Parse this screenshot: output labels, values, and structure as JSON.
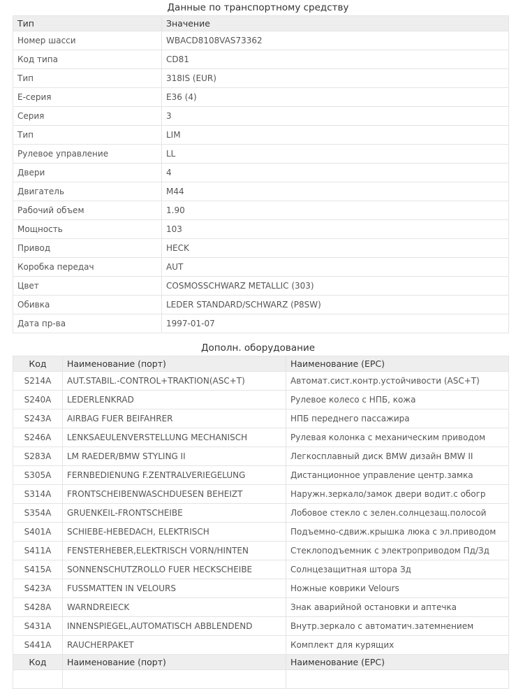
{
  "vehicle": {
    "title": "Данные по транспортному средству",
    "headers": [
      "Тип",
      "Значение"
    ],
    "rows": [
      [
        "Номер шасси",
        "WBACD8108VAS73362"
      ],
      [
        "Код типа",
        "CD81"
      ],
      [
        "Тип",
        "318IS (EUR)"
      ],
      [
        "E-серия",
        "E36 (4)"
      ],
      [
        "Серия",
        "3"
      ],
      [
        "Тип",
        "LIM"
      ],
      [
        "Рулевое управление",
        "LL"
      ],
      [
        "Двери",
        "4"
      ],
      [
        "Двигатель",
        "M44"
      ],
      [
        "Рабочий объем",
        "1.90"
      ],
      [
        "Мощность",
        "103"
      ],
      [
        "Привод",
        "HECK"
      ],
      [
        "Коробка передач",
        "AUT"
      ],
      [
        "Цвет",
        "COSMOSSCHWARZ METALLIC (303)"
      ],
      [
        "Обивка",
        "LEDER STANDARD/SCHWARZ (P8SW)"
      ],
      [
        "Дата пр-ва",
        "1997-01-07"
      ]
    ]
  },
  "equipment": {
    "title": "Дополн. оборудование",
    "headers": [
      "Код",
      "Наименование (порт)",
      "Наименование (EPC)"
    ],
    "rows": [
      [
        "S214A",
        "AUT.STABIL.-CONTROL+TRAKTION(ASC+T)",
        "Автомат.сист.контр.устойчивости (ASC+T)"
      ],
      [
        "S240A",
        "LEDERLENKRAD",
        "Рулевое колесо с НПБ, кожа"
      ],
      [
        "S243A",
        "AIRBAG FUER BEIFAHRER",
        "НПБ переднего пассажира"
      ],
      [
        "S246A",
        "LENKSAEULENVERSTELLUNG MECHANISCH",
        "Рулевая колонка с механическим приводом"
      ],
      [
        "S283A",
        "LM RAEDER/BMW STYLING II",
        "Легкосплавный диск BMW дизайн BMW II"
      ],
      [
        "S305A",
        "FERNBEDIENUNG F.ZENTRALVERIEGELUNG",
        "Дистанционное управление центр.замка"
      ],
      [
        "S314A",
        "FRONTSCHEIBENWASCHDUESEN BEHEIZT",
        "Наружн.зеркало/замок двери водит.с обогр"
      ],
      [
        "S354A",
        "GRUENKEIL-FRONTSCHEIBE",
        "Лобовое стекло с зелен.солнцезащ.полосой"
      ],
      [
        "S401A",
        "SCHIEBE-HEBEDACH, ELEKTRISCH",
        "Подъемно-сдвиж.крышка люка с эл.приводом"
      ],
      [
        "S411A",
        "FENSTERHEBER,ELEKTRISCH VORN/HINTEN",
        "Стеклоподъемник с электроприводом Пд/Зд"
      ],
      [
        "S415A",
        "SONNENSCHUTZROLLO FUER HECKSCHEIBE",
        "Солнцезащитная штора Зд"
      ],
      [
        "S423A",
        "FUSSMATTEN IN VELOURS",
        "Ножные коврики Velours"
      ],
      [
        "S428A",
        "WARNDREIECK",
        "Знак аварийной остановки и аптечка"
      ],
      [
        "S431A",
        "INNENSPIEGEL,AUTOMATISCH ABBLENDEND",
        "Внутр.зеркало с автоматич.затемнением"
      ],
      [
        "S441A",
        "RAUCHERPAKET",
        "Комплект для курящих"
      ]
    ]
  }
}
